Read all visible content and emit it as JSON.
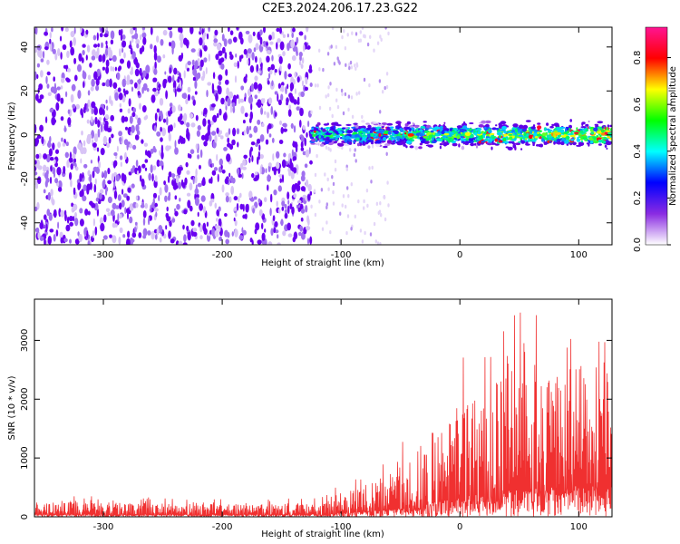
{
  "title": "C2E3.2024.206.17.23.G22",
  "chart_data": [
    {
      "type": "heatmap",
      "xlabel": "Height of straight line (km)",
      "ylabel": "Frequency (Hz)",
      "xlim": [
        -358,
        128
      ],
      "ylim": [
        -50,
        49
      ],
      "xticks": [
        "-300",
        "-200",
        "-100",
        "0",
        "100"
      ],
      "yticks": [
        "40",
        "20",
        "0",
        "-20",
        "-40"
      ],
      "colorbar": {
        "label": "Normalized spectral amplitude",
        "ticks": [
          "0.0",
          "0.2",
          "0.4",
          "0.6",
          "0.8"
        ],
        "range": [
          0,
          0.93
        ],
        "colors": [
          "#ffffff",
          "#8a2be2",
          "#0000ff",
          "#00ffff",
          "#00ff00",
          "#ffff00",
          "#ff0000",
          "#ff1493"
        ]
      },
      "series": [
        {
          "region_x": [
            -358,
            -125
          ],
          "freq_range": [
            -50,
            49
          ],
          "amplitude": 0.1
        },
        {
          "region_x": [
            -125,
            128
          ],
          "freq_center": 0,
          "freq_halfwidth": 4,
          "amplitude_max": 0.9
        }
      ]
    },
    {
      "type": "line",
      "xlabel": "Height of straight line (km)",
      "ylabel": "SNR (10 * v/v)",
      "xlim": [
        -358,
        128
      ],
      "ylim": [
        0,
        3700
      ],
      "xticks": [
        "-300",
        "-200",
        "-100",
        "0",
        "100"
      ],
      "yticks": [
        "0",
        "1000",
        "2000",
        "3000"
      ],
      "line_color": "#f03030",
      "envelope": {
        "x": [
          -358,
          -300,
          -200,
          -120,
          -100,
          -80,
          -60,
          -40,
          -20,
          0,
          20,
          40,
          60,
          80,
          100,
          128
        ],
        "mean": [
          120,
          120,
          110,
          120,
          200,
          260,
          350,
          500,
          700,
          1000,
          1100,
          1300,
          1400,
          1450,
          1500,
          1500
        ],
        "peak": [
          350,
          350,
          300,
          330,
          600,
          800,
          1000,
          1500,
          2300,
          2900,
          3200,
          3400,
          3650,
          3600,
          3500,
          3300
        ]
      }
    }
  ]
}
